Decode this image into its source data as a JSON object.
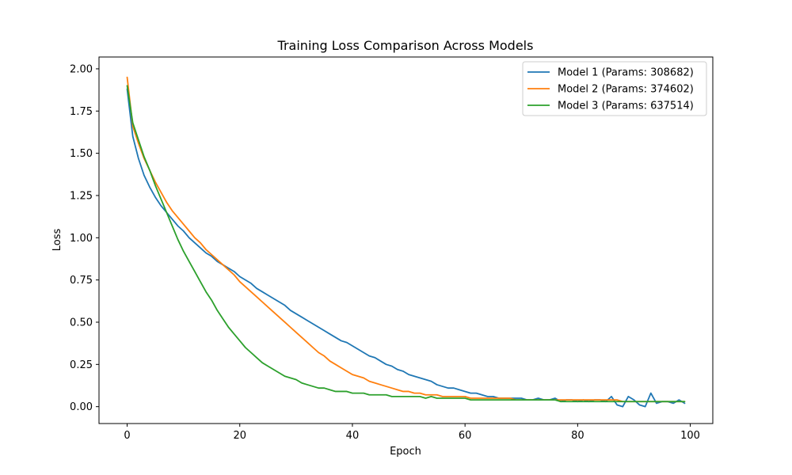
{
  "chart_data": {
    "type": "line",
    "title": "Training Loss Comparison Across Models",
    "xlabel": "Epoch",
    "ylabel": "Loss",
    "xlim": [
      -5,
      104
    ],
    "ylim": [
      -0.1,
      2.07
    ],
    "xticks": [
      0,
      20,
      40,
      60,
      80,
      100
    ],
    "xtick_labels": [
      "0",
      "20",
      "40",
      "60",
      "80",
      "100"
    ],
    "yticks": [
      0,
      0.25,
      0.5,
      0.75,
      1.0,
      1.25,
      1.5,
      1.75,
      2.0
    ],
    "ytick_labels": [
      "0.00",
      "0.25",
      "0.50",
      "0.75",
      "1.00",
      "1.25",
      "1.50",
      "1.75",
      "2.00"
    ],
    "grid": false,
    "legend_position": "top-right",
    "series": [
      {
        "name": "Model 1 (Params: 308682)",
        "color": "#1f77b4",
        "points": [
          [
            0,
            1.88
          ],
          [
            1,
            1.6
          ],
          [
            2,
            1.47
          ],
          [
            3,
            1.37
          ],
          [
            4,
            1.3
          ],
          [
            5,
            1.24
          ],
          [
            6,
            1.19
          ],
          [
            7,
            1.15
          ],
          [
            8,
            1.11
          ],
          [
            9,
            1.07
          ],
          [
            10,
            1.04
          ],
          [
            11,
            1.0
          ],
          [
            12,
            0.97
          ],
          [
            13,
            0.94
          ],
          [
            14,
            0.91
          ],
          [
            15,
            0.89
          ],
          [
            16,
            0.86
          ],
          [
            17,
            0.84
          ],
          [
            18,
            0.82
          ],
          [
            19,
            0.8
          ],
          [
            20,
            0.77
          ],
          [
            21,
            0.75
          ],
          [
            22,
            0.73
          ],
          [
            23,
            0.7
          ],
          [
            24,
            0.68
          ],
          [
            25,
            0.66
          ],
          [
            26,
            0.64
          ],
          [
            27,
            0.62
          ],
          [
            28,
            0.6
          ],
          [
            29,
            0.57
          ],
          [
            30,
            0.55
          ],
          [
            31,
            0.53
          ],
          [
            32,
            0.51
          ],
          [
            33,
            0.49
          ],
          [
            34,
            0.47
          ],
          [
            35,
            0.45
          ],
          [
            36,
            0.43
          ],
          [
            37,
            0.41
          ],
          [
            38,
            0.39
          ],
          [
            39,
            0.38
          ],
          [
            40,
            0.36
          ],
          [
            41,
            0.34
          ],
          [
            42,
            0.32
          ],
          [
            43,
            0.3
          ],
          [
            44,
            0.29
          ],
          [
            45,
            0.27
          ],
          [
            46,
            0.25
          ],
          [
            47,
            0.24
          ],
          [
            48,
            0.22
          ],
          [
            49,
            0.21
          ],
          [
            50,
            0.19
          ],
          [
            51,
            0.18
          ],
          [
            52,
            0.17
          ],
          [
            53,
            0.16
          ],
          [
            54,
            0.15
          ],
          [
            55,
            0.13
          ],
          [
            56,
            0.12
          ],
          [
            57,
            0.11
          ],
          [
            58,
            0.11
          ],
          [
            59,
            0.1
          ],
          [
            60,
            0.09
          ],
          [
            61,
            0.08
          ],
          [
            62,
            0.08
          ],
          [
            63,
            0.07
          ],
          [
            64,
            0.06
          ],
          [
            65,
            0.06
          ],
          [
            66,
            0.05
          ],
          [
            67,
            0.05
          ],
          [
            68,
            0.05
          ],
          [
            69,
            0.05
          ],
          [
            70,
            0.05
          ],
          [
            71,
            0.04
          ],
          [
            72,
            0.04
          ],
          [
            73,
            0.05
          ],
          [
            74,
            0.04
          ],
          [
            75,
            0.04
          ],
          [
            76,
            0.05
          ],
          [
            77,
            0.03
          ],
          [
            78,
            0.04
          ],
          [
            79,
            0.04
          ],
          [
            80,
            0.03
          ],
          [
            81,
            0.04
          ],
          [
            82,
            0.03
          ],
          [
            83,
            0.04
          ],
          [
            84,
            0.04
          ],
          [
            85,
            0.03
          ],
          [
            86,
            0.06
          ],
          [
            87,
            0.01
          ],
          [
            88,
            0.0
          ],
          [
            89,
            0.06
          ],
          [
            90,
            0.04
          ],
          [
            91,
            0.01
          ],
          [
            92,
            0.0
          ],
          [
            93,
            0.08
          ],
          [
            94,
            0.02
          ],
          [
            95,
            0.03
          ],
          [
            96,
            0.03
          ],
          [
            97,
            0.02
          ],
          [
            98,
            0.04
          ],
          [
            99,
            0.02
          ]
        ]
      },
      {
        "name": "Model 2 (Params: 374602)",
        "color": "#ff7f0e",
        "points": [
          [
            0,
            1.95
          ],
          [
            1,
            1.66
          ],
          [
            2,
            1.56
          ],
          [
            3,
            1.47
          ],
          [
            4,
            1.4
          ],
          [
            5,
            1.33
          ],
          [
            6,
            1.27
          ],
          [
            7,
            1.21
          ],
          [
            8,
            1.16
          ],
          [
            9,
            1.12
          ],
          [
            10,
            1.08
          ],
          [
            11,
            1.04
          ],
          [
            12,
            1.0
          ],
          [
            13,
            0.97
          ],
          [
            14,
            0.93
          ],
          [
            15,
            0.9
          ],
          [
            16,
            0.87
          ],
          [
            17,
            0.84
          ],
          [
            18,
            0.81
          ],
          [
            19,
            0.78
          ],
          [
            20,
            0.74
          ],
          [
            21,
            0.71
          ],
          [
            22,
            0.68
          ],
          [
            23,
            0.65
          ],
          [
            24,
            0.62
          ],
          [
            25,
            0.59
          ],
          [
            26,
            0.56
          ],
          [
            27,
            0.53
          ],
          [
            28,
            0.5
          ],
          [
            29,
            0.47
          ],
          [
            30,
            0.44
          ],
          [
            31,
            0.41
          ],
          [
            32,
            0.38
          ],
          [
            33,
            0.35
          ],
          [
            34,
            0.32
          ],
          [
            35,
            0.3
          ],
          [
            36,
            0.27
          ],
          [
            37,
            0.25
          ],
          [
            38,
            0.23
          ],
          [
            39,
            0.21
          ],
          [
            40,
            0.19
          ],
          [
            41,
            0.18
          ],
          [
            42,
            0.17
          ],
          [
            43,
            0.15
          ],
          [
            44,
            0.14
          ],
          [
            45,
            0.13
          ],
          [
            46,
            0.12
          ],
          [
            47,
            0.11
          ],
          [
            48,
            0.1
          ],
          [
            49,
            0.09
          ],
          [
            50,
            0.09
          ],
          [
            51,
            0.08
          ],
          [
            52,
            0.08
          ],
          [
            53,
            0.07
          ],
          [
            54,
            0.07
          ],
          [
            55,
            0.07
          ],
          [
            56,
            0.06
          ],
          [
            57,
            0.06
          ],
          [
            58,
            0.06
          ],
          [
            59,
            0.06
          ],
          [
            60,
            0.06
          ],
          [
            61,
            0.05
          ],
          [
            62,
            0.05
          ],
          [
            63,
            0.05
          ],
          [
            64,
            0.05
          ],
          [
            65,
            0.05
          ],
          [
            66,
            0.05
          ],
          [
            67,
            0.05
          ],
          [
            68,
            0.05
          ],
          [
            69,
            0.04
          ],
          [
            70,
            0.04
          ],
          [
            71,
            0.04
          ],
          [
            72,
            0.04
          ],
          [
            73,
            0.04
          ],
          [
            74,
            0.04
          ],
          [
            75,
            0.04
          ],
          [
            76,
            0.04
          ],
          [
            77,
            0.04
          ],
          [
            78,
            0.04
          ],
          [
            79,
            0.04
          ],
          [
            80,
            0.04
          ],
          [
            81,
            0.04
          ],
          [
            82,
            0.04
          ],
          [
            83,
            0.04
          ],
          [
            84,
            0.04
          ],
          [
            85,
            0.04
          ],
          [
            86,
            0.04
          ],
          [
            87,
            0.04
          ],
          [
            88,
            0.03
          ],
          [
            89,
            0.03
          ],
          [
            90,
            0.03
          ],
          [
            91,
            0.03
          ],
          [
            92,
            0.03
          ],
          [
            93,
            0.03
          ],
          [
            94,
            0.03
          ],
          [
            95,
            0.03
          ],
          [
            96,
            0.03
          ],
          [
            97,
            0.03
          ],
          [
            98,
            0.03
          ],
          [
            99,
            0.03
          ]
        ]
      },
      {
        "name": "Model 3 (Params: 637514)",
        "color": "#2ca02c",
        "points": [
          [
            0,
            1.9
          ],
          [
            1,
            1.68
          ],
          [
            2,
            1.58
          ],
          [
            3,
            1.48
          ],
          [
            4,
            1.4
          ],
          [
            5,
            1.31
          ],
          [
            6,
            1.23
          ],
          [
            7,
            1.15
          ],
          [
            8,
            1.07
          ],
          [
            9,
            0.99
          ],
          [
            10,
            0.92
          ],
          [
            11,
            0.86
          ],
          [
            12,
            0.8
          ],
          [
            13,
            0.74
          ],
          [
            14,
            0.68
          ],
          [
            15,
            0.63
          ],
          [
            16,
            0.57
          ],
          [
            17,
            0.52
          ],
          [
            18,
            0.47
          ],
          [
            19,
            0.43
          ],
          [
            20,
            0.39
          ],
          [
            21,
            0.35
          ],
          [
            22,
            0.32
          ],
          [
            23,
            0.29
          ],
          [
            24,
            0.26
          ],
          [
            25,
            0.24
          ],
          [
            26,
            0.22
          ],
          [
            27,
            0.2
          ],
          [
            28,
            0.18
          ],
          [
            29,
            0.17
          ],
          [
            30,
            0.16
          ],
          [
            31,
            0.14
          ],
          [
            32,
            0.13
          ],
          [
            33,
            0.12
          ],
          [
            34,
            0.11
          ],
          [
            35,
            0.11
          ],
          [
            36,
            0.1
          ],
          [
            37,
            0.09
          ],
          [
            38,
            0.09
          ],
          [
            39,
            0.09
          ],
          [
            40,
            0.08
          ],
          [
            41,
            0.08
          ],
          [
            42,
            0.08
          ],
          [
            43,
            0.07
          ],
          [
            44,
            0.07
          ],
          [
            45,
            0.07
          ],
          [
            46,
            0.07
          ],
          [
            47,
            0.06
          ],
          [
            48,
            0.06
          ],
          [
            49,
            0.06
          ],
          [
            50,
            0.06
          ],
          [
            51,
            0.06
          ],
          [
            52,
            0.06
          ],
          [
            53,
            0.05
          ],
          [
            54,
            0.06
          ],
          [
            55,
            0.05
          ],
          [
            56,
            0.05
          ],
          [
            57,
            0.05
          ],
          [
            58,
            0.05
          ],
          [
            59,
            0.05
          ],
          [
            60,
            0.05
          ],
          [
            61,
            0.04
          ],
          [
            62,
            0.04
          ],
          [
            63,
            0.04
          ],
          [
            64,
            0.04
          ],
          [
            65,
            0.04
          ],
          [
            66,
            0.04
          ],
          [
            67,
            0.04
          ],
          [
            68,
            0.04
          ],
          [
            69,
            0.04
          ],
          [
            70,
            0.04
          ],
          [
            71,
            0.04
          ],
          [
            72,
            0.04
          ],
          [
            73,
            0.04
          ],
          [
            74,
            0.04
          ],
          [
            75,
            0.04
          ],
          [
            76,
            0.04
          ],
          [
            77,
            0.03
          ],
          [
            78,
            0.03
          ],
          [
            79,
            0.03
          ],
          [
            80,
            0.03
          ],
          [
            81,
            0.03
          ],
          [
            82,
            0.03
          ],
          [
            83,
            0.03
          ],
          [
            84,
            0.03
          ],
          [
            85,
            0.03
          ],
          [
            86,
            0.03
          ],
          [
            87,
            0.03
          ],
          [
            88,
            0.03
          ],
          [
            89,
            0.03
          ],
          [
            90,
            0.03
          ],
          [
            91,
            0.03
          ],
          [
            92,
            0.03
          ],
          [
            93,
            0.03
          ],
          [
            94,
            0.03
          ],
          [
            95,
            0.03
          ],
          [
            96,
            0.03
          ],
          [
            97,
            0.03
          ],
          [
            98,
            0.03
          ],
          [
            99,
            0.03
          ]
        ]
      }
    ]
  }
}
